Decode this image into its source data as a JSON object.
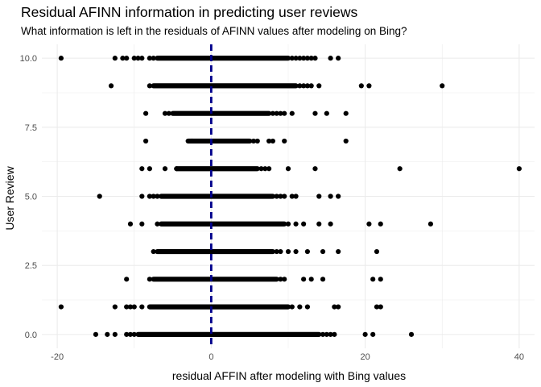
{
  "chart_data": {
    "type": "scatter",
    "title": "Residual AFINN information in predicting user reviews",
    "subtitle": "What information is left in the residuals of AFINN values after modeling on Bing?",
    "xlabel": "residual AFFIN after modeling with Bing values",
    "ylabel": "User Review",
    "xlim": [
      -22,
      42
    ],
    "ylim": [
      -0.5,
      10.5
    ],
    "x_ticks": [
      -20,
      0,
      20,
      40
    ],
    "x_tick_labels": [
      "-20",
      "0",
      "20",
      "40"
    ],
    "y_ticks": [
      0,
      2.5,
      5,
      7.5,
      10
    ],
    "y_tick_labels": [
      "0.0",
      "2.5",
      "5.0",
      "7.5",
      "10.0"
    ],
    "grid": true,
    "reference_line": {
      "x": 0,
      "style": "dashed",
      "color": "#00008b"
    },
    "point_color": "#000000",
    "rows": [
      {
        "y": 10,
        "dense": [
          -7,
          10
        ],
        "sparse": [
          -19.5,
          -12.5,
          -11.5,
          -11,
          -10,
          -9.5,
          -9,
          -8,
          -7.5,
          10.5,
          11,
          11.5,
          12,
          12.5,
          13,
          13.5,
          15.5,
          16.5
        ]
      },
      {
        "y": 9,
        "dense": [
          -7.5,
          11
        ],
        "sparse": [
          -13,
          -8,
          11.5,
          12,
          12.5,
          13,
          14,
          19.5,
          20.5,
          30
        ]
      },
      {
        "y": 8,
        "dense": [
          -5,
          7.5
        ],
        "sparse": [
          -8.5,
          -6,
          -5.5,
          8,
          8.5,
          9,
          9.5,
          10.5,
          13.5,
          15,
          17.5
        ]
      },
      {
        "y": 7,
        "dense": [
          -3,
          5
        ],
        "sparse": [
          -8.5,
          -2.5,
          5.5,
          6,
          7.5,
          8,
          9.5,
          17.5
        ]
      },
      {
        "y": 6,
        "dense": [
          -4.5,
          6
        ],
        "sparse": [
          -9,
          -8,
          -6,
          -4.5,
          6.5,
          7,
          7.5,
          10,
          13.5,
          24.5,
          40
        ]
      },
      {
        "y": 5,
        "dense": [
          -6.5,
          8
        ],
        "sparse": [
          -14.5,
          -9,
          -8,
          -7.5,
          -7,
          8.5,
          9,
          9.5,
          10.5,
          11,
          14,
          15.5,
          16.5
        ]
      },
      {
        "y": 4,
        "dense": [
          -6.5,
          9.5
        ],
        "sparse": [
          -10.5,
          -9,
          -7,
          10,
          11,
          12,
          14,
          15.5,
          20.5,
          22,
          28.5
        ]
      },
      {
        "y": 3,
        "dense": [
          -7,
          8
        ],
        "sparse": [
          -7.5,
          8.5,
          9,
          10,
          11,
          12.5,
          14.5,
          16.5,
          21.5
        ]
      },
      {
        "y": 2,
        "dense": [
          -7.5,
          8.5
        ],
        "sparse": [
          -11,
          -8,
          9,
          9.5,
          12,
          13,
          14.5,
          21,
          22
        ]
      },
      {
        "y": 1,
        "dense": [
          -8,
          10
        ],
        "sparse": [
          -19.5,
          -12.5,
          -11,
          -10.5,
          -10,
          -9,
          10.5,
          11.5,
          12.5,
          16,
          16.5,
          21.5,
          22
        ]
      },
      {
        "y": 0,
        "dense": [
          -9.5,
          14
        ],
        "sparse": [
          -15,
          -13.5,
          -12.5,
          -11,
          -10.5,
          -10,
          14.5,
          15,
          15.5,
          16,
          20,
          21,
          26
        ]
      }
    ]
  }
}
